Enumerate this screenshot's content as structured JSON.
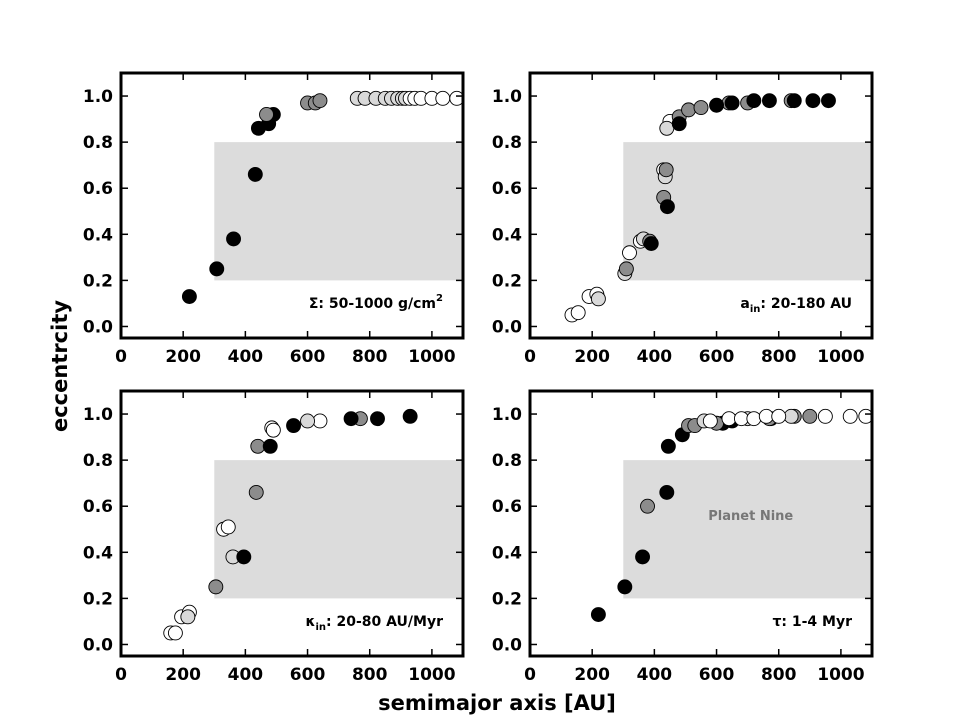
{
  "figure": {
    "xlabel": "semimajor axis [AU]",
    "ylabel": "eccentrcity"
  },
  "colors": {
    "black": "#000000",
    "gray": "#8c8c8c",
    "light": "#d9d9d9",
    "white": "#ffffff",
    "region": "#dcdcdc",
    "region_text": "#777777"
  },
  "chart_data": [
    {
      "type": "scatter",
      "panel": "top-left",
      "label": {
        "symbol": "Σ",
        "text": ": 50-1000 g/cm",
        "sup": "2"
      },
      "xlim": [
        0,
        1100
      ],
      "ylim": [
        -0.05,
        1.1
      ],
      "xticks": [
        0,
        200,
        400,
        600,
        800,
        1000
      ],
      "yticks": [
        0.0,
        0.2,
        0.4,
        0.6,
        0.8,
        1.0
      ],
      "shaded_region": {
        "x": [
          300,
          1100
        ],
        "y": [
          0.2,
          0.8
        ]
      },
      "series": [
        {
          "color": "black",
          "points": [
            [
              220,
              0.13
            ],
            [
              308,
              0.25
            ],
            [
              362,
              0.38
            ],
            [
              432,
              0.66
            ],
            [
              442,
              0.86
            ],
            [
              475,
              0.88
            ],
            [
              490,
              0.92
            ]
          ]
        },
        {
          "color": "gray",
          "points": [
            [
              468,
              0.92
            ],
            [
              600,
              0.97
            ],
            [
              625,
              0.97
            ],
            [
              640,
              0.98
            ]
          ]
        },
        {
          "color": "light",
          "points": [
            [
              760,
              0.99
            ],
            [
              785,
              0.99
            ],
            [
              820,
              0.99
            ],
            [
              850,
              0.99
            ],
            [
              870,
              0.99
            ],
            [
              890,
              0.99
            ],
            [
              905,
              0.99
            ],
            [
              915,
              0.99
            ]
          ]
        },
        {
          "color": "white",
          "points": [
            [
              930,
              0.99
            ],
            [
              945,
              0.99
            ],
            [
              965,
              0.99
            ],
            [
              1000,
              0.99
            ],
            [
              1035,
              0.99
            ],
            [
              1080,
              0.99
            ]
          ]
        }
      ]
    },
    {
      "type": "scatter",
      "panel": "top-right",
      "label": {
        "symbol": "a",
        "sub": "in",
        "text": ": 20-180 AU"
      },
      "xlim": [
        0,
        1100
      ],
      "ylim": [
        -0.05,
        1.1
      ],
      "xticks": [
        0,
        200,
        400,
        600,
        800,
        1000
      ],
      "yticks": [
        0.0,
        0.2,
        0.4,
        0.6,
        0.8,
        1.0
      ],
      "shaded_region": {
        "x": [
          300,
          1100
        ],
        "y": [
          0.2,
          0.8
        ]
      },
      "series": [
        {
          "color": "white",
          "points": [
            [
              135,
              0.05
            ],
            [
              155,
              0.06
            ],
            [
              190,
              0.13
            ],
            [
              215,
              0.14
            ],
            [
              320,
              0.32
            ],
            [
              355,
              0.37
            ],
            [
              430,
              0.68
            ],
            [
              450,
              0.89
            ]
          ]
        },
        {
          "color": "light",
          "points": [
            [
              220,
              0.12
            ],
            [
              305,
              0.23
            ],
            [
              365,
              0.38
            ],
            [
              435,
              0.65
            ],
            [
              440,
              0.86
            ]
          ]
        },
        {
          "color": "gray",
          "points": [
            [
              310,
              0.25
            ],
            [
              385,
              0.37
            ],
            [
              430,
              0.56
            ],
            [
              438,
              0.68
            ],
            [
              480,
              0.91
            ],
            [
              510,
              0.94
            ],
            [
              550,
              0.95
            ],
            [
              640,
              0.97
            ],
            [
              700,
              0.97
            ],
            [
              840,
              0.98
            ]
          ]
        },
        {
          "color": "black",
          "points": [
            [
              390,
              0.36
            ],
            [
              442,
              0.52
            ],
            [
              480,
              0.88
            ],
            [
              600,
              0.96
            ],
            [
              650,
              0.97
            ],
            [
              720,
              0.98
            ],
            [
              770,
              0.98
            ],
            [
              850,
              0.98
            ],
            [
              910,
              0.98
            ],
            [
              960,
              0.98
            ]
          ]
        }
      ]
    },
    {
      "type": "scatter",
      "panel": "bottom-left",
      "label": {
        "symbol": "κ",
        "sub": "in",
        "text": ": 20-80 AU/Myr"
      },
      "xlim": [
        0,
        1100
      ],
      "ylim": [
        -0.05,
        1.1
      ],
      "xticks": [
        0,
        200,
        400,
        600,
        800,
        1000
      ],
      "yticks": [
        0.0,
        0.2,
        0.4,
        0.6,
        0.8,
        1.0
      ],
      "shaded_region": {
        "x": [
          300,
          1100
        ],
        "y": [
          0.2,
          0.8
        ]
      },
      "series": [
        {
          "color": "white",
          "points": [
            [
              160,
              0.05
            ],
            [
              175,
              0.05
            ],
            [
              195,
              0.12
            ],
            [
              220,
              0.14
            ],
            [
              330,
              0.5
            ],
            [
              345,
              0.51
            ],
            [
              485,
              0.94
            ],
            [
              490,
              0.93
            ],
            [
              640,
              0.97
            ]
          ]
        },
        {
          "color": "light",
          "points": [
            [
              215,
              0.12
            ],
            [
              360,
              0.38
            ],
            [
              600,
              0.97
            ]
          ]
        },
        {
          "color": "gray",
          "points": [
            [
              305,
              0.25
            ],
            [
              435,
              0.66
            ],
            [
              440,
              0.86
            ],
            [
              770,
              0.98
            ]
          ]
        },
        {
          "color": "black",
          "points": [
            [
              395,
              0.38
            ],
            [
              480,
              0.86
            ],
            [
              555,
              0.95
            ],
            [
              740,
              0.98
            ],
            [
              825,
              0.98
            ],
            [
              930,
              0.99
            ]
          ]
        }
      ]
    },
    {
      "type": "scatter",
      "panel": "bottom-right",
      "label": {
        "symbol": "τ",
        "text": ": 1-4 Myr"
      },
      "region_label": "Planet Nine",
      "xlim": [
        0,
        1100
      ],
      "ylim": [
        -0.05,
        1.1
      ],
      "xticks": [
        0,
        200,
        400,
        600,
        800,
        1000
      ],
      "yticks": [
        0.0,
        0.2,
        0.4,
        0.6,
        0.8,
        1.0
      ],
      "shaded_region": {
        "x": [
          300,
          1100
        ],
        "y": [
          0.2,
          0.8
        ]
      },
      "series": [
        {
          "color": "black",
          "points": [
            [
              220,
              0.13
            ],
            [
              305,
              0.25
            ],
            [
              362,
              0.38
            ],
            [
              440,
              0.66
            ],
            [
              445,
              0.86
            ],
            [
              490,
              0.91
            ],
            [
              620,
              0.96
            ],
            [
              650,
              0.97
            ],
            [
              775,
              0.98
            ]
          ]
        },
        {
          "color": "gray",
          "points": [
            [
              378,
              0.6
            ],
            [
              510,
              0.95
            ],
            [
              530,
              0.95
            ],
            [
              600,
              0.96
            ],
            [
              770,
              0.98
            ],
            [
              850,
              0.99
            ],
            [
              900,
              0.99
            ]
          ]
        },
        {
          "color": "light",
          "points": [
            [
              560,
              0.97
            ],
            [
              700,
              0.98
            ],
            [
              840,
              0.99
            ]
          ]
        },
        {
          "color": "white",
          "points": [
            [
              580,
              0.97
            ],
            [
              640,
              0.98
            ],
            [
              680,
              0.98
            ],
            [
              720,
              0.98
            ],
            [
              760,
              0.99
            ],
            [
              800,
              0.99
            ],
            [
              950,
              0.99
            ],
            [
              1030,
              0.99
            ],
            [
              1080,
              0.99
            ]
          ]
        }
      ]
    }
  ]
}
